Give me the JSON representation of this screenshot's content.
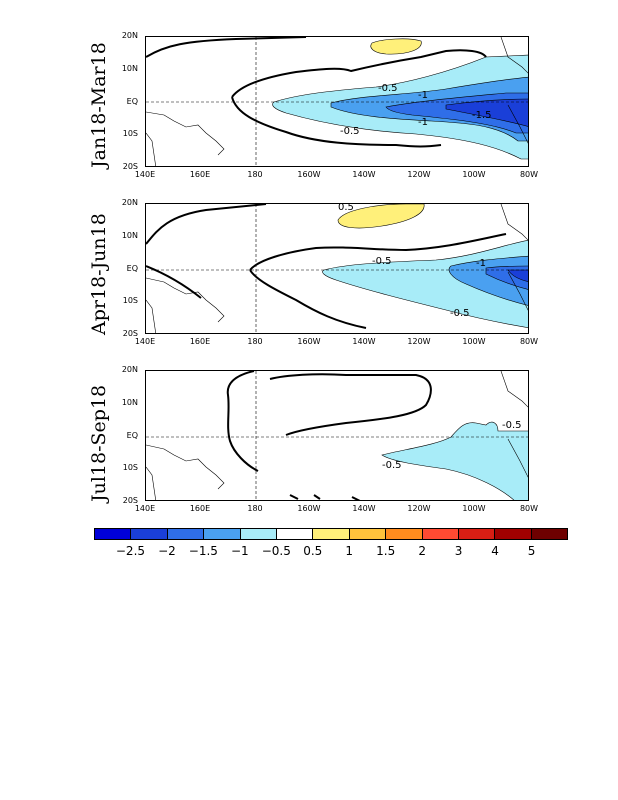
{
  "panels": [
    {
      "title": "Jan18-Mar18"
    },
    {
      "title": "Apr18-Jun18"
    },
    {
      "title": "Jul18-Sep18"
    }
  ],
  "lat_labels": [
    "20N",
    "10N",
    "EQ",
    "10S",
    "20S"
  ],
  "lon_labels": [
    "140E",
    "160E",
    "180",
    "160W",
    "140W",
    "120W",
    "100W",
    "80W"
  ],
  "colorbar": {
    "labels": [
      "-2.5",
      "-2",
      "-1.5",
      "-1",
      "-0.5",
      "0.5",
      "1",
      "1.5",
      "2",
      "3",
      "4",
      "5"
    ],
    "colors": [
      "#0000d8",
      "#1a3fd8",
      "#2f6ee8",
      "#4aa0f0",
      "#a8ecf8",
      "#ffffff",
      "#fff07a",
      "#ffc33c",
      "#ff8c1e",
      "#ff4a32",
      "#d81e14",
      "#a00000",
      "#6e0000"
    ]
  },
  "contour_labels": {
    "p1": [
      "-0.5",
      "-1",
      "-1",
      "-1.5",
      "-0.5"
    ],
    "p2": [
      "0.5",
      "-0.5",
      "-1",
      "-0.5"
    ],
    "p3": [
      "-0.5",
      "-0.5"
    ]
  }
}
